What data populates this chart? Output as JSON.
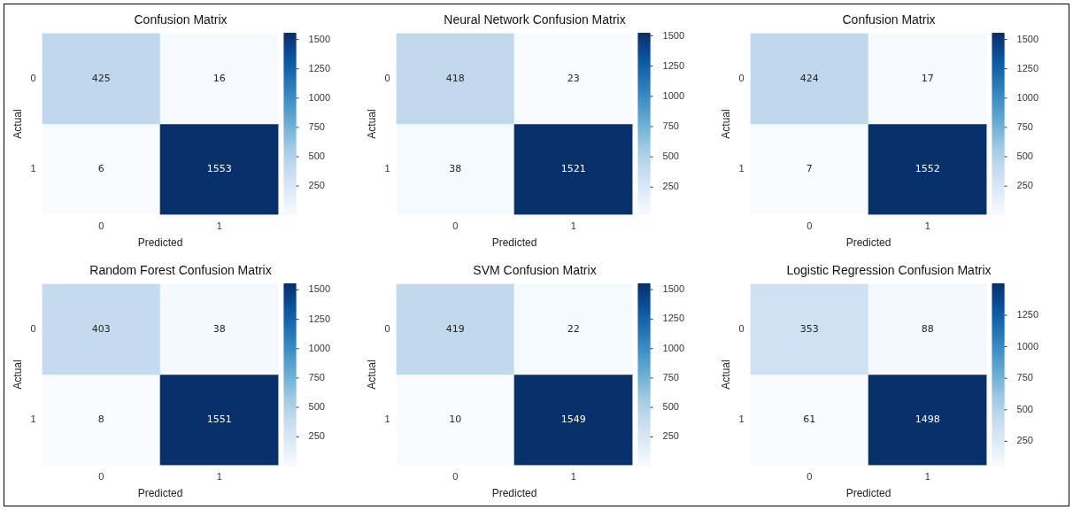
{
  "chart_data": [
    {
      "type": "heatmap",
      "title": "Confusion Matrix",
      "xlabel": "Predicted",
      "ylabel": "Actual",
      "categories": [
        "0",
        "1"
      ],
      "y_categories": [
        "0",
        "1"
      ],
      "cells": [
        [
          425,
          16
        ],
        [
          6,
          1553
        ]
      ],
      "data_labels": true,
      "clim": [
        6,
        1553
      ],
      "cticks": [
        250,
        500,
        750,
        1000,
        1250,
        1500
      ]
    },
    {
      "type": "heatmap",
      "title": "Neural Network Confusion Matrix",
      "xlabel": "Predicted",
      "ylabel": "Actual",
      "categories": [
        "0",
        "1"
      ],
      "y_categories": [
        "0",
        "1"
      ],
      "cells": [
        [
          418,
          23
        ],
        [
          38,
          1521
        ]
      ],
      "data_labels": true,
      "clim": [
        23,
        1521
      ],
      "cticks": [
        250,
        500,
        750,
        1000,
        1250,
        1500
      ]
    },
    {
      "type": "heatmap",
      "title": "Confusion Matrix",
      "xlabel": "Predicted",
      "ylabel": "Actual",
      "categories": [
        "0",
        "1"
      ],
      "y_categories": [
        "0",
        "1"
      ],
      "cells": [
        [
          424,
          17
        ],
        [
          7,
          1552
        ]
      ],
      "data_labels": true,
      "clim": [
        7,
        1552
      ],
      "cticks": [
        250,
        500,
        750,
        1000,
        1250,
        1500
      ]
    },
    {
      "type": "heatmap",
      "title": "Random Forest Confusion Matrix",
      "xlabel": "Predicted",
      "ylabel": "Actual",
      "categories": [
        "0",
        "1"
      ],
      "y_categories": [
        "0",
        "1"
      ],
      "cells": [
        [
          403,
          38
        ],
        [
          8,
          1551
        ]
      ],
      "data_labels": true,
      "clim": [
        8,
        1551
      ],
      "cticks": [
        250,
        500,
        750,
        1000,
        1250,
        1500
      ]
    },
    {
      "type": "heatmap",
      "title": "SVM Confusion Matrix",
      "xlabel": "Predicted",
      "ylabel": "Actual",
      "categories": [
        "0",
        "1"
      ],
      "y_categories": [
        "0",
        "1"
      ],
      "cells": [
        [
          419,
          22
        ],
        [
          10,
          1549
        ]
      ],
      "data_labels": true,
      "clim": [
        10,
        1549
      ],
      "cticks": [
        250,
        500,
        750,
        1000,
        1250,
        1500
      ]
    },
    {
      "type": "heatmap",
      "title": "Logistic Regression Confusion Matrix",
      "xlabel": "Predicted",
      "ylabel": "Actual",
      "categories": [
        "0",
        "1"
      ],
      "y_categories": [
        "0",
        "1"
      ],
      "cells": [
        [
          353,
          88
        ],
        [
          61,
          1498
        ]
      ],
      "data_labels": true,
      "clim": [
        61,
        1498
      ],
      "cticks": [
        250,
        500,
        750,
        1000,
        1250
      ]
    }
  ]
}
